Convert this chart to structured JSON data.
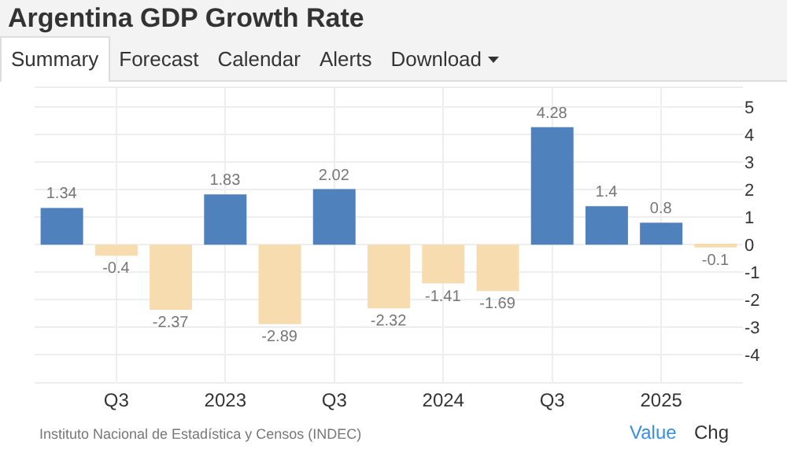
{
  "chart_data": {
    "type": "bar",
    "title": "Argentina GDP Growth Rate",
    "categories": [
      null,
      "Q3",
      null,
      "2023",
      null,
      "Q3",
      null,
      "2024",
      null,
      "Q3",
      null,
      "2025",
      null
    ],
    "values": [
      1.34,
      -0.4,
      -2.37,
      1.83,
      -2.89,
      2.02,
      -2.32,
      -1.41,
      -1.69,
      4.28,
      1.4,
      0.8,
      -0.1
    ],
    "colors": [
      "#4f81bd",
      "#f7dcb0",
      "#f7dcb0",
      "#4f81bd",
      "#f7dcb0",
      "#4f81bd",
      "#f7dcb0",
      "#f7dcb0",
      "#f7dcb0",
      "#4f81bd",
      "#4f81bd",
      "#4f81bd",
      "#f7dcb0"
    ],
    "ylim": [
      -5,
      5.7
    ],
    "yticks": [
      -4,
      -3,
      -2,
      -1,
      0,
      1,
      2,
      3,
      4,
      5
    ],
    "grid": true,
    "data_labels": true,
    "legend": false,
    "annotations": [
      "Summary",
      "Forecast",
      "Calendar",
      "Alerts",
      "Download",
      "Instituto Nacional de Estadística y Censos (INDEC)",
      "Value",
      "Chg"
    ]
  }
}
